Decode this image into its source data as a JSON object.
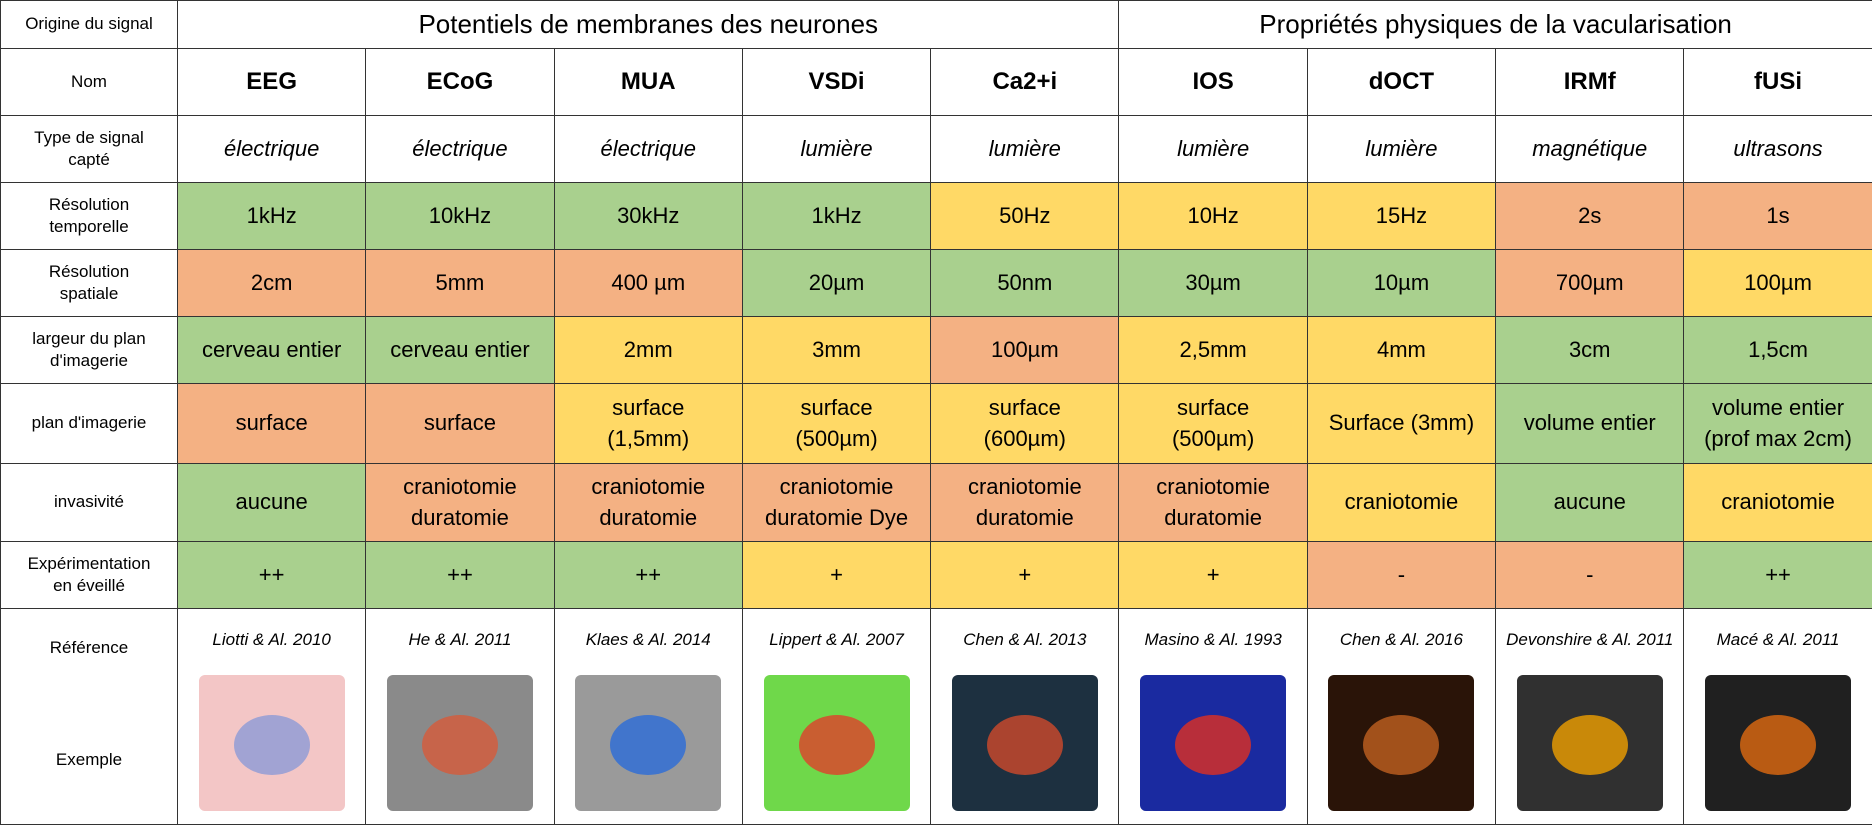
{
  "header": {
    "origin": "Origine du signal",
    "groups": [
      "Potentiels de membranes des neurones",
      "Propriétés physiques de la vacularisation"
    ]
  },
  "names": {
    "label": "Nom",
    "values": [
      "EEG",
      "ECoG",
      "MUA",
      "VSDi",
      "Ca2+i",
      "IOS",
      "dOCT",
      "IRMf",
      "fUSi"
    ]
  },
  "signal_type": {
    "label": "Type de signal\ncapté",
    "values": [
      "électrique",
      "électrique",
      "électrique",
      "lumière",
      "lumière",
      "lumière",
      "lumière",
      "magnétique",
      "ultrasons"
    ]
  },
  "metrics": [
    {
      "label": "Résolution\ntemporelle",
      "cells": [
        {
          "text": "1kHz",
          "color": "#a9d08e"
        },
        {
          "text": "10kHz",
          "color": "#a9d08e"
        },
        {
          "text": "30kHz",
          "color": "#a9d08e"
        },
        {
          "text": "1kHz",
          "color": "#a9d08e"
        },
        {
          "text": "50Hz",
          "color": "#ffd966"
        },
        {
          "text": "10Hz",
          "color": "#ffd966"
        },
        {
          "text": "15Hz",
          "color": "#ffd966"
        },
        {
          "text": "2s",
          "color": "#f4b183"
        },
        {
          "text": "1s",
          "color": "#f4b183"
        }
      ]
    },
    {
      "label": "Résolution\nspatiale",
      "cells": [
        {
          "text": "2cm",
          "color": "#f4b183"
        },
        {
          "text": "5mm",
          "color": "#f4b183"
        },
        {
          "text": "400 µm",
          "color": "#f4b183"
        },
        {
          "text": "20µm",
          "color": "#a9d08e"
        },
        {
          "text": "50nm",
          "color": "#a9d08e"
        },
        {
          "text": "30µm",
          "color": "#a9d08e"
        },
        {
          "text": "10µm",
          "color": "#a9d08e"
        },
        {
          "text": "700µm",
          "color": "#f4b183"
        },
        {
          "text": "100µm",
          "color": "#ffd966"
        }
      ]
    },
    {
      "label": "largeur du plan\nd'imagerie",
      "cells": [
        {
          "text": "cerveau entier",
          "color": "#a9d08e"
        },
        {
          "text": "cerveau entier",
          "color": "#a9d08e"
        },
        {
          "text": "2mm",
          "color": "#ffd966"
        },
        {
          "text": "3mm",
          "color": "#ffd966"
        },
        {
          "text": "100µm",
          "color": "#f4b183"
        },
        {
          "text": "2,5mm",
          "color": "#ffd966"
        },
        {
          "text": "4mm",
          "color": "#ffd966"
        },
        {
          "text": "3cm",
          "color": "#a9d08e"
        },
        {
          "text": "1,5cm",
          "color": "#a9d08e"
        }
      ]
    },
    {
      "label": "plan d'imagerie",
      "cells": [
        {
          "text": "surface",
          "color": "#f4b183"
        },
        {
          "text": "surface",
          "color": "#f4b183"
        },
        {
          "text": "surface\n(1,5mm)",
          "color": "#ffd966"
        },
        {
          "text": "surface\n(500µm)",
          "color": "#ffd966"
        },
        {
          "text": "surface\n(600µm)",
          "color": "#ffd966"
        },
        {
          "text": "surface\n(500µm)",
          "color": "#ffd966"
        },
        {
          "text": "Surface (3mm)",
          "color": "#ffd966"
        },
        {
          "text": "volume entier",
          "color": "#a9d08e"
        },
        {
          "text": "volume entier\n(prof max 2cm)",
          "color": "#a9d08e"
        }
      ]
    },
    {
      "label": "invasivité",
      "cells": [
        {
          "text": "aucune",
          "color": "#a9d08e"
        },
        {
          "text": "craniotomie\nduratomie",
          "color": "#f4b183"
        },
        {
          "text": "craniotomie\nduratomie",
          "color": "#f4b183"
        },
        {
          "text": "craniotomie\nduratomie Dye",
          "color": "#f4b183"
        },
        {
          "text": "craniotomie\nduratomie",
          "color": "#f4b183"
        },
        {
          "text": "craniotomie\nduratomie",
          "color": "#f4b183"
        },
        {
          "text": "craniotomie",
          "color": "#ffd966"
        },
        {
          "text": "aucune",
          "color": "#a9d08e"
        },
        {
          "text": "craniotomie",
          "color": "#ffd966"
        }
      ]
    },
    {
      "label": "Expérimentation\nen éveillé",
      "cells": [
        {
          "text": "++",
          "color": "#a9d08e"
        },
        {
          "text": "++",
          "color": "#a9d08e"
        },
        {
          "text": "++",
          "color": "#a9d08e"
        },
        {
          "text": "+",
          "color": "#ffd966"
        },
        {
          "text": "+",
          "color": "#ffd966"
        },
        {
          "text": "+",
          "color": "#ffd966"
        },
        {
          "text": "-",
          "color": "#f4b183"
        },
        {
          "text": "-",
          "color": "#f4b183"
        },
        {
          "text": "++",
          "color": "#a9d08e"
        }
      ]
    }
  ],
  "reference": {
    "label": "Référence",
    "values": [
      "Liotti & Al. 2010",
      "He & Al. 2011",
      "Klaes & Al. 2014",
      "Lippert & Al. 2007",
      "Chen & Al. 2013",
      "Masino & Al. 1993",
      "Chen & Al. 2016",
      "Devonshire & Al. 2011",
      "Macé & Al. 2011"
    ]
  },
  "example": {
    "label": "Exemple"
  }
}
